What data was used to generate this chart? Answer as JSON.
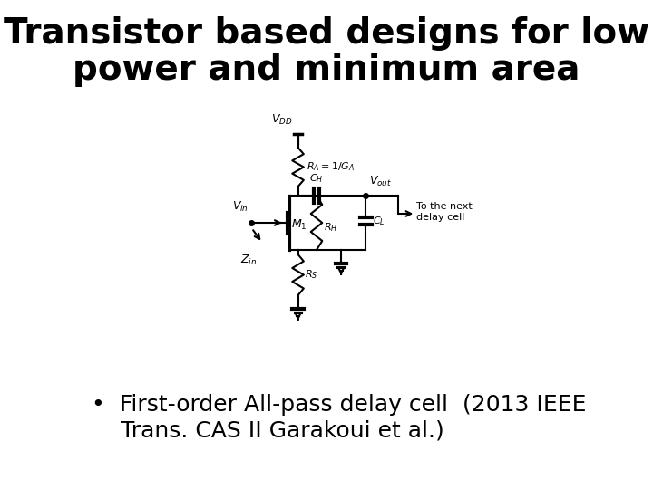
{
  "title_line1": "Transistor based designs for low",
  "title_line2": "power and minimum area",
  "title_fontsize": 28,
  "title_fontfamily": "sans-serif",
  "title_fontweight": "bold",
  "bullet_text_line1": "•  First-order All-pass delay cell  (2013 IEEE",
  "bullet_text_line2": "    Trans. CAS II Garakoui et al.)",
  "bullet_fontsize": 18,
  "background_color": "#ffffff",
  "text_color": "#000000",
  "circuit_color": "#000000"
}
